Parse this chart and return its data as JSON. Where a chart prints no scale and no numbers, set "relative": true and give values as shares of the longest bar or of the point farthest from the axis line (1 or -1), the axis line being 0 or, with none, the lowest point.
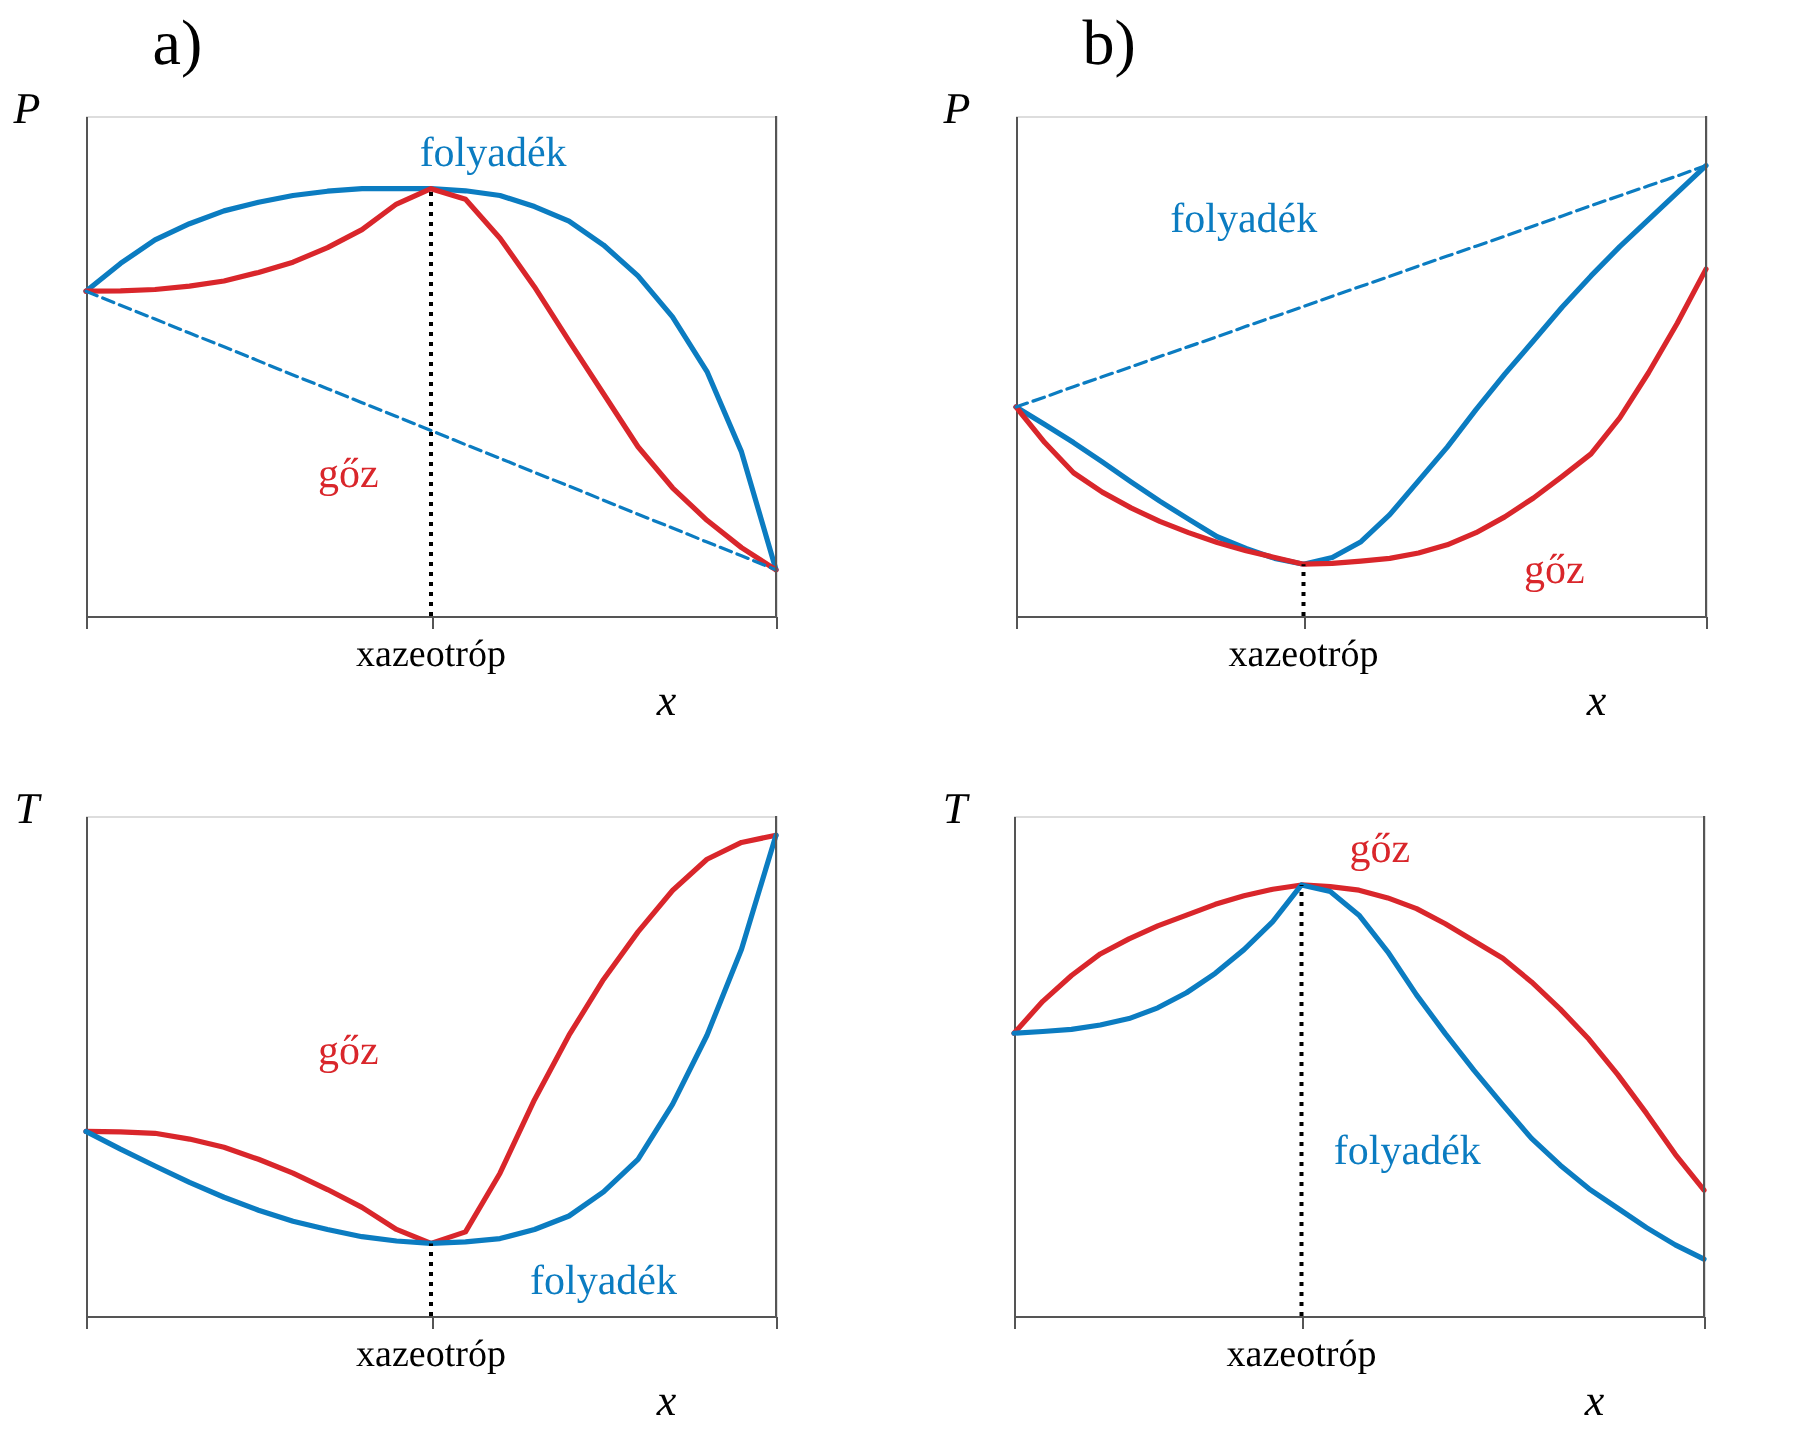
{
  "chart_data": [
    {
      "type": "line",
      "title": "a)",
      "ylabel": "P",
      "xlabel": "x",
      "relative": true,
      "categories": [
        null,
        null,
        null,
        null,
        null,
        null,
        null,
        null,
        null,
        null,
        null,
        null,
        null,
        null,
        null,
        null,
        null,
        null,
        null,
        null,
        null
      ],
      "annotations": [
        "xazeotróp"
      ],
      "series": [
        {
          "name": "folyadék",
          "color": "#0b7cc1",
          "line_style": "solid",
          "values": [
            0.76,
            0.825,
            0.88,
            0.918,
            0.948,
            0.968,
            0.984,
            0.994,
            1.0,
            1.0,
            1.0,
            0.995,
            0.984,
            0.958,
            0.924,
            0.868,
            0.796,
            0.7,
            0.572,
            0.384,
            0.108
          ]
        },
        {
          "name": "gőz",
          "color": "#d9262b",
          "line_style": "solid",
          "values": [
            0.76,
            0.761,
            0.764,
            0.772,
            0.784,
            0.804,
            0.828,
            0.862,
            0.904,
            0.964,
            1.0,
            0.975,
            0.884,
            0.77,
            0.644,
            0.52,
            0.396,
            0.3,
            0.224,
            0.16,
            0.108
          ]
        },
        {
          "color": "#0b7cc1",
          "line_style": "dashed",
          "values": [
            0.76,
            0.727,
            0.695,
            0.662,
            0.63,
            0.597,
            0.564,
            0.532,
            0.499,
            0.467,
            0.434,
            0.401,
            0.369,
            0.336,
            0.304,
            0.271,
            0.238,
            0.206,
            0.173,
            0.141,
            0.108
          ]
        }
      ]
    },
    {
      "type": "line",
      "title": "b)",
      "ylabel": "P",
      "xlabel": "x",
      "relative": true,
      "categories": [
        null,
        null,
        null,
        null,
        null,
        null,
        null,
        null,
        null,
        null,
        null,
        null,
        null,
        null,
        null,
        null,
        null,
        null,
        null,
        null,
        null,
        null,
        null,
        null,
        null
      ],
      "annotations": [
        "xazeotróp"
      ],
      "series": [
        {
          "name": "folyadék",
          "color": "#0b7cc1",
          "line_style": "solid",
          "values": [
            0.464,
            0.425,
            0.385,
            0.342,
            0.298,
            0.255,
            0.215,
            0.176,
            0.15,
            0.128,
            0.115,
            0.13,
            0.165,
            0.225,
            0.3,
            0.375,
            0.458,
            0.537,
            0.611,
            0.686,
            0.755,
            0.82,
            0.88,
            0.94,
            1.0
          ]
        },
        {
          "name": "gőz",
          "color": "#d9262b",
          "line_style": "solid",
          "values": [
            0.464,
            0.385,
            0.318,
            0.275,
            0.24,
            0.21,
            0.185,
            0.163,
            0.145,
            0.13,
            0.115,
            0.117,
            0.122,
            0.128,
            0.14,
            0.158,
            0.185,
            0.22,
            0.262,
            0.31,
            0.36,
            0.44,
            0.54,
            0.65,
            0.77
          ]
        },
        {
          "color": "#0b7cc1",
          "line_style": "dashed",
          "values": [
            0.464,
            0.486,
            0.509,
            0.531,
            0.553,
            0.576,
            0.598,
            0.62,
            0.643,
            0.665,
            0.687,
            0.71,
            0.732,
            0.754,
            0.777,
            0.799,
            0.821,
            0.843,
            0.866,
            0.888,
            0.911,
            0.933,
            0.955,
            0.977,
            1.0
          ]
        }
      ]
    },
    {
      "type": "line",
      "ylabel": "T",
      "xlabel": "x",
      "relative": true,
      "categories": [
        null,
        null,
        null,
        null,
        null,
        null,
        null,
        null,
        null,
        null,
        null,
        null,
        null,
        null,
        null,
        null,
        null,
        null,
        null,
        null,
        null
      ],
      "annotations": [
        "xazeotróp"
      ],
      "series": [
        {
          "name": "gőz",
          "color": "#d9262b",
          "line_style": "solid",
          "values": [
            0.384,
            0.383,
            0.38,
            0.368,
            0.351,
            0.326,
            0.297,
            0.263,
            0.226,
            0.18,
            0.151,
            0.175,
            0.297,
            0.45,
            0.584,
            0.7,
            0.799,
            0.885,
            0.95,
            0.985,
            1.0
          ]
        },
        {
          "name": "folyadék",
          "color": "#0b7cc1",
          "line_style": "solid",
          "values": [
            0.384,
            0.347,
            0.312,
            0.278,
            0.247,
            0.22,
            0.197,
            0.18,
            0.165,
            0.156,
            0.151,
            0.154,
            0.161,
            0.18,
            0.208,
            0.258,
            0.326,
            0.44,
            0.584,
            0.763,
            1.0
          ]
        }
      ]
    },
    {
      "type": "line",
      "ylabel": "T",
      "xlabel": "x",
      "relative": true,
      "categories": [
        null,
        null,
        null,
        null,
        null,
        null,
        null,
        null,
        null,
        null,
        null,
        null,
        null,
        null,
        null,
        null,
        null,
        null,
        null,
        null,
        null,
        null,
        null,
        null,
        null
      ],
      "annotations": [
        "xazeotróp"
      ],
      "series": [
        {
          "name": "gőz",
          "color": "#d9262b",
          "line_style": "solid",
          "values": [
            0.656,
            0.73,
            0.79,
            0.84,
            0.875,
            0.905,
            0.93,
            0.955,
            0.975,
            0.99,
            1.0,
            0.996,
            0.988,
            0.97,
            0.945,
            0.91,
            0.87,
            0.83,
            0.775,
            0.712,
            0.642,
            0.56,
            0.47,
            0.375,
            0.292
          ]
        },
        {
          "name": "folyadék",
          "color": "#0b7cc1",
          "line_style": "solid",
          "values": [
            0.656,
            0.66,
            0.665,
            0.675,
            0.69,
            0.715,
            0.75,
            0.795,
            0.85,
            0.915,
            1.0,
            0.985,
            0.93,
            0.845,
            0.745,
            0.655,
            0.57,
            0.49,
            0.412,
            0.35,
            0.295,
            0.25,
            0.205,
            0.165,
            0.132
          ]
        }
      ]
    }
  ]
}
